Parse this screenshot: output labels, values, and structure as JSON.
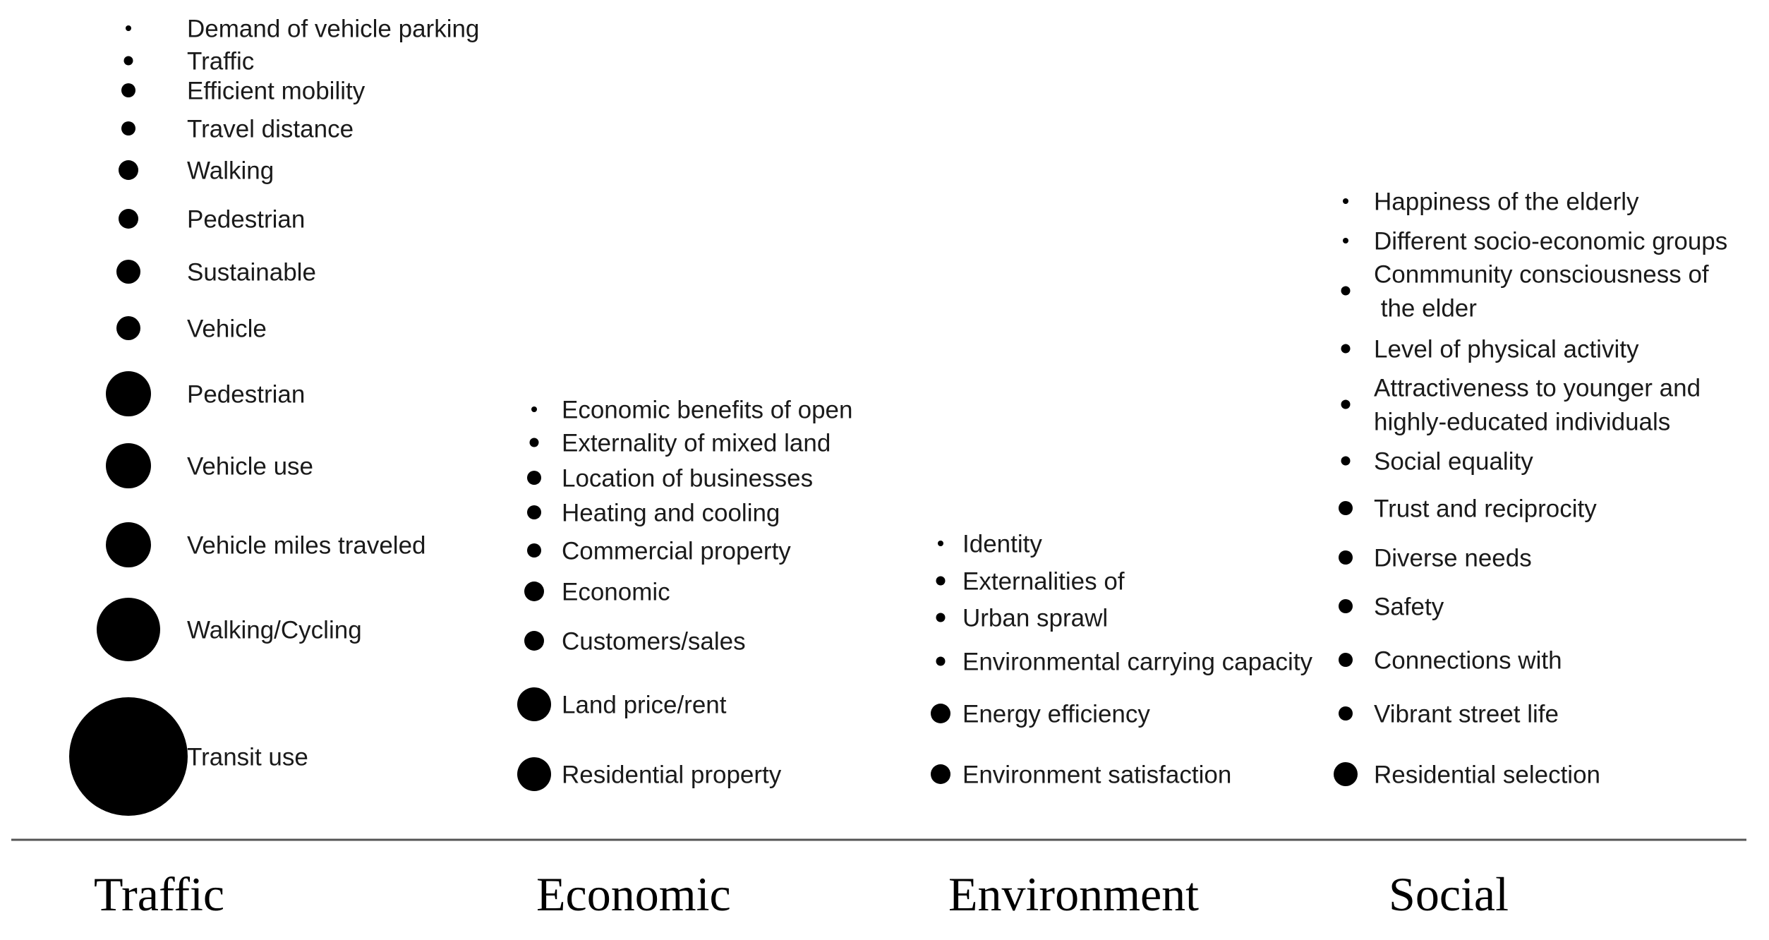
{
  "columns": [
    {
      "category": "Traffic",
      "items": [
        {
          "label": "Demand of vehicle parking",
          "size": 1
        },
        {
          "label": "Traffic",
          "size": 2
        },
        {
          "label": "Efficient mobility",
          "size": 3
        },
        {
          "label": "Travel distance",
          "size": 3
        },
        {
          "label": "Walking",
          "size": 4
        },
        {
          "label": "Pedestrian",
          "size": 4
        },
        {
          "label": "Sustainable",
          "size": 5
        },
        {
          "label": "Vehicle",
          "size": 5
        },
        {
          "label": "Pedestrian",
          "size": 7
        },
        {
          "label": "Vehicle use",
          "size": 7
        },
        {
          "label": "Vehicle miles traveled",
          "size": 7
        },
        {
          "label": "Walking/Cycling",
          "size": 9
        },
        {
          "label": "Transit use",
          "size": 17
        }
      ]
    },
    {
      "category": "Economic",
      "items": [
        {
          "label": "Economic benefits of open",
          "size": 1
        },
        {
          "label": "Externality of mixed land",
          "size": 2
        },
        {
          "label": "Location of businesses",
          "size": 3
        },
        {
          "label": "Heating and cooling",
          "size": 3
        },
        {
          "label": "Commercial property",
          "size": 3
        },
        {
          "label": "Economic",
          "size": 4
        },
        {
          "label": "Customers/sales",
          "size": 4
        },
        {
          "label": "Land price/rent",
          "size": 6
        },
        {
          "label": "Residential property",
          "size": 6
        }
      ]
    },
    {
      "category": "Environment",
      "items": [
        {
          "label": "Identity",
          "size": 1
        },
        {
          "label": "Externalities of",
          "size": 2
        },
        {
          "label": "Urban sprawl",
          "size": 2
        },
        {
          "label": "Environmental carrying capacity",
          "size": 2
        },
        {
          "label": "Energy efficiency",
          "size": 4
        },
        {
          "label": "Environment satisfaction",
          "size": 4
        }
      ]
    },
    {
      "category": "Social",
      "items": [
        {
          "label": "Happiness of the elderly",
          "size": 1
        },
        {
          "label": "Different socio-economic groups",
          "size": 1
        },
        {
          "label": "Conmmunity consciousness of\n the elder",
          "size": 2
        },
        {
          "label": "Level of physical activity",
          "size": 2
        },
        {
          "label": "Attractiveness to younger and\nhighly-educated individuals",
          "size": 2
        },
        {
          "label": "Social equality",
          "size": 2
        },
        {
          "label": "Trust and reciprocity",
          "size": 3
        },
        {
          "label": "Diverse needs",
          "size": 3
        },
        {
          "label": "Safety",
          "size": 3
        },
        {
          "label": "Connections with",
          "size": 3
        },
        {
          "label": "Vibrant street life",
          "size": 3
        },
        {
          "label": "Residential selection",
          "size": 5
        }
      ]
    }
  ]
}
